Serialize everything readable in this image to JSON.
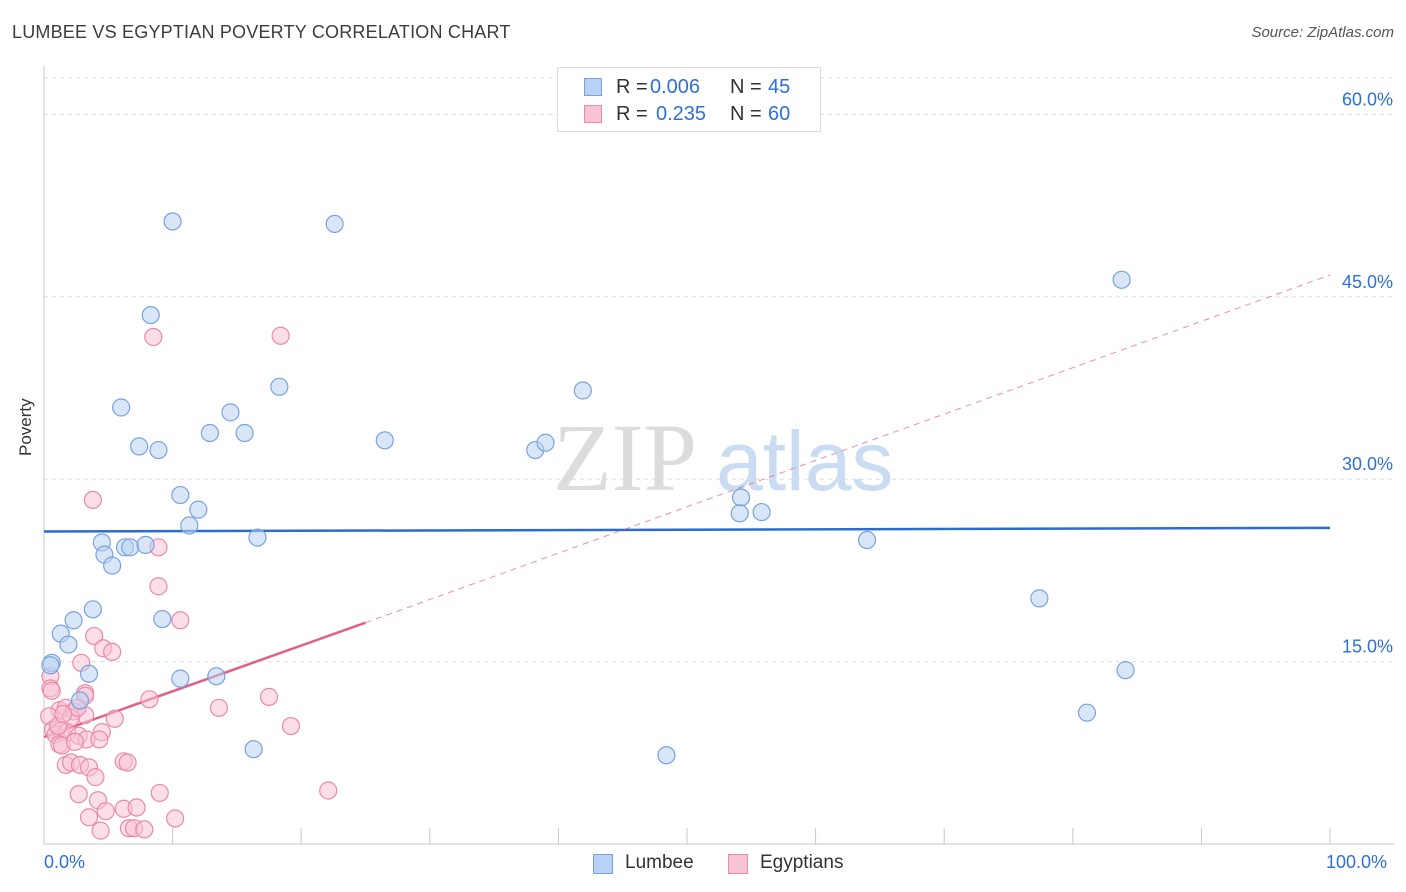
{
  "title": "LUMBEE VS EGYPTIAN POVERTY CORRELATION CHART",
  "source": "Source: ZipAtlas.com",
  "watermark": {
    "zip": "ZIP",
    "atlas": "atlas"
  },
  "legend": {
    "items": [
      {
        "r_label": "R =",
        "r_value": "0.006",
        "n_label": "N =",
        "n_value": "45"
      },
      {
        "r_label": "R =",
        "r_value": "0.235",
        "n_label": "N =",
        "n_value": "60"
      }
    ]
  },
  "bottom_legend": {
    "lumbee": "Lumbee",
    "egyptians": "Egyptians"
  },
  "colors": {
    "lumbee_fill": "#b9d1f3",
    "lumbee_stroke": "#7aa3dc",
    "lumbee_line": "#2a6dcf",
    "egypt_fill": "#f8c3d3",
    "egypt_stroke": "#e98aa9",
    "egypt_line": "#e0608a",
    "axis_label": "#2f6fd6",
    "grid": "#dddddd"
  },
  "chart_data": {
    "type": "scatter",
    "title": "LUMBEE VS EGYPTIAN POVERTY CORRELATION CHART",
    "xlabel": "",
    "ylabel": "Poverty",
    "xlim": [
      0,
      100
    ],
    "ylim": [
      0,
      63
    ],
    "x_tick_labels": [
      "0.0%",
      "100.0%"
    ],
    "y_ticks": [
      15,
      30,
      45,
      60
    ],
    "y_tick_labels": [
      "15.0%",
      "30.0%",
      "45.0%",
      "60.0%"
    ],
    "series": [
      {
        "name": "Lumbee",
        "r": 0.006,
        "n": 45,
        "trend": {
          "x": [
            0,
            100
          ],
          "y": [
            25.7,
            26.0
          ],
          "style": "solid"
        },
        "points": [
          [
            10.0,
            51.2
          ],
          [
            22.6,
            51.0
          ],
          [
            83.8,
            46.4
          ],
          [
            8.3,
            43.5
          ],
          [
            18.3,
            37.6
          ],
          [
            41.9,
            37.3
          ],
          [
            6.0,
            35.9
          ],
          [
            14.5,
            35.5
          ],
          [
            12.9,
            33.8
          ],
          [
            15.6,
            33.8
          ],
          [
            26.5,
            33.2
          ],
          [
            7.4,
            32.7
          ],
          [
            8.9,
            32.4
          ],
          [
            38.2,
            32.4
          ],
          [
            39.0,
            33.0
          ],
          [
            10.6,
            28.7
          ],
          [
            54.2,
            28.5
          ],
          [
            12.0,
            27.5
          ],
          [
            54.1,
            27.2
          ],
          [
            55.8,
            27.3
          ],
          [
            11.3,
            26.2
          ],
          [
            16.6,
            25.2
          ],
          [
            64.0,
            25.0
          ],
          [
            4.5,
            24.8
          ],
          [
            6.3,
            24.4
          ],
          [
            6.7,
            24.4
          ],
          [
            7.9,
            24.6
          ],
          [
            4.7,
            23.8
          ],
          [
            5.3,
            22.9
          ],
          [
            77.4,
            20.2
          ],
          [
            3.8,
            19.3
          ],
          [
            2.3,
            18.4
          ],
          [
            9.2,
            18.5
          ],
          [
            1.3,
            17.3
          ],
          [
            1.9,
            16.4
          ],
          [
            0.6,
            14.9
          ],
          [
            0.5,
            14.7
          ],
          [
            3.5,
            14.0
          ],
          [
            10.6,
            13.6
          ],
          [
            13.4,
            13.8
          ],
          [
            84.1,
            14.3
          ],
          [
            2.8,
            11.8
          ],
          [
            81.1,
            10.8
          ],
          [
            16.3,
            7.8
          ],
          [
            48.4,
            7.3
          ]
        ]
      },
      {
        "name": "Egyptians",
        "r": 0.235,
        "n": 60,
        "trend": {
          "x": [
            0,
            25
          ],
          "y": [
            8.8,
            18.2
          ],
          "dashed_to": [
            100,
            46.8
          ]
        },
        "points": [
          [
            8.5,
            41.7
          ],
          [
            18.4,
            41.8
          ],
          [
            3.8,
            28.3
          ],
          [
            8.9,
            24.4
          ],
          [
            8.9,
            21.2
          ],
          [
            10.6,
            18.4
          ],
          [
            3.9,
            17.1
          ],
          [
            4.6,
            16.1
          ],
          [
            5.3,
            15.8
          ],
          [
            0.5,
            13.8
          ],
          [
            2.9,
            14.9
          ],
          [
            0.5,
            12.8
          ],
          [
            0.6,
            12.6
          ],
          [
            3.2,
            12.4
          ],
          [
            3.2,
            12.2
          ],
          [
            8.2,
            11.9
          ],
          [
            17.5,
            12.1
          ],
          [
            13.6,
            11.2
          ],
          [
            1.2,
            11.0
          ],
          [
            1.7,
            11.2
          ],
          [
            2.3,
            10.9
          ],
          [
            3.2,
            10.6
          ],
          [
            2.1,
            10.4
          ],
          [
            0.4,
            10.5
          ],
          [
            5.5,
            10.3
          ],
          [
            19.2,
            9.7
          ],
          [
            0.7,
            9.4
          ],
          [
            1.3,
            9.3
          ],
          [
            0.9,
            9.0
          ],
          [
            1.8,
            9.2
          ],
          [
            4.5,
            9.2
          ],
          [
            2.7,
            8.9
          ],
          [
            3.3,
            8.6
          ],
          [
            4.3,
            8.6
          ],
          [
            1.2,
            8.2
          ],
          [
            1.4,
            8.1
          ],
          [
            2.4,
            8.4
          ],
          [
            1.7,
            6.5
          ],
          [
            2.1,
            6.7
          ],
          [
            2.8,
            6.5
          ],
          [
            3.5,
            6.3
          ],
          [
            6.2,
            6.8
          ],
          [
            6.5,
            6.7
          ],
          [
            4.0,
            5.5
          ],
          [
            22.1,
            4.4
          ],
          [
            2.7,
            4.1
          ],
          [
            9.0,
            4.2
          ],
          [
            4.2,
            3.6
          ],
          [
            6.2,
            2.9
          ],
          [
            7.2,
            3.0
          ],
          [
            4.8,
            2.7
          ],
          [
            3.5,
            2.2
          ],
          [
            10.2,
            2.1
          ],
          [
            6.6,
            1.3
          ],
          [
            7.0,
            1.3
          ],
          [
            7.8,
            1.2
          ],
          [
            4.4,
            1.1
          ],
          [
            1.1,
            9.7
          ],
          [
            2.6,
            11.2
          ],
          [
            1.5,
            10.7
          ]
        ]
      }
    ]
  }
}
